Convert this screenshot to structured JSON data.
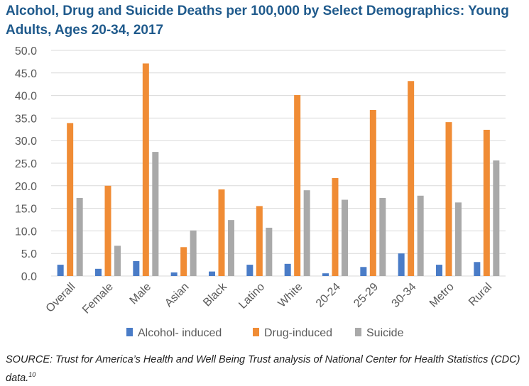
{
  "title": "Alcohol, Drug and Suicide Deaths per 100,000 by Select Demographics: Young Adults, Ages 20-34, 2017",
  "source": "SOURCE: Trust for America’s Health and Well Being Trust analysis of National Center for Health Statistics (CDC) data.",
  "source_ref": "10",
  "colors": {
    "alcohol": "#4a7cc7",
    "drug": "#f08c35",
    "suicide": "#a9a9a9",
    "title": "#1f5a8c"
  },
  "chart_data": {
    "type": "bar",
    "categories": [
      "Overall",
      "Female",
      "Male",
      "Asian",
      "Black",
      "Latino",
      "White",
      "20-24",
      "25-29",
      "30-34",
      "Metro",
      "Rural"
    ],
    "series": [
      {
        "name": "Alcohol- induced",
        "values": [
          2.5,
          1.6,
          3.3,
          0.8,
          1.0,
          2.5,
          2.7,
          0.6,
          2.0,
          5.0,
          2.5,
          3.1
        ]
      },
      {
        "name": "Drug-induced",
        "values": [
          33.9,
          20.0,
          47.1,
          6.4,
          19.2,
          15.5,
          40.1,
          21.7,
          36.8,
          43.2,
          34.1,
          32.4
        ]
      },
      {
        "name": "Suicide",
        "values": [
          17.3,
          6.7,
          27.5,
          10.1,
          12.4,
          10.7,
          19.0,
          16.9,
          17.3,
          17.8,
          16.3,
          25.6
        ]
      }
    ],
    "yticks": [
      "0.0",
      "5.0",
      "10.0",
      "15.0",
      "20.0",
      "25.0",
      "30.0",
      "35.0",
      "40.0",
      "45.0",
      "50.0"
    ],
    "ylim": [
      0,
      50
    ],
    "grid": true,
    "legend_position": "bottom"
  }
}
